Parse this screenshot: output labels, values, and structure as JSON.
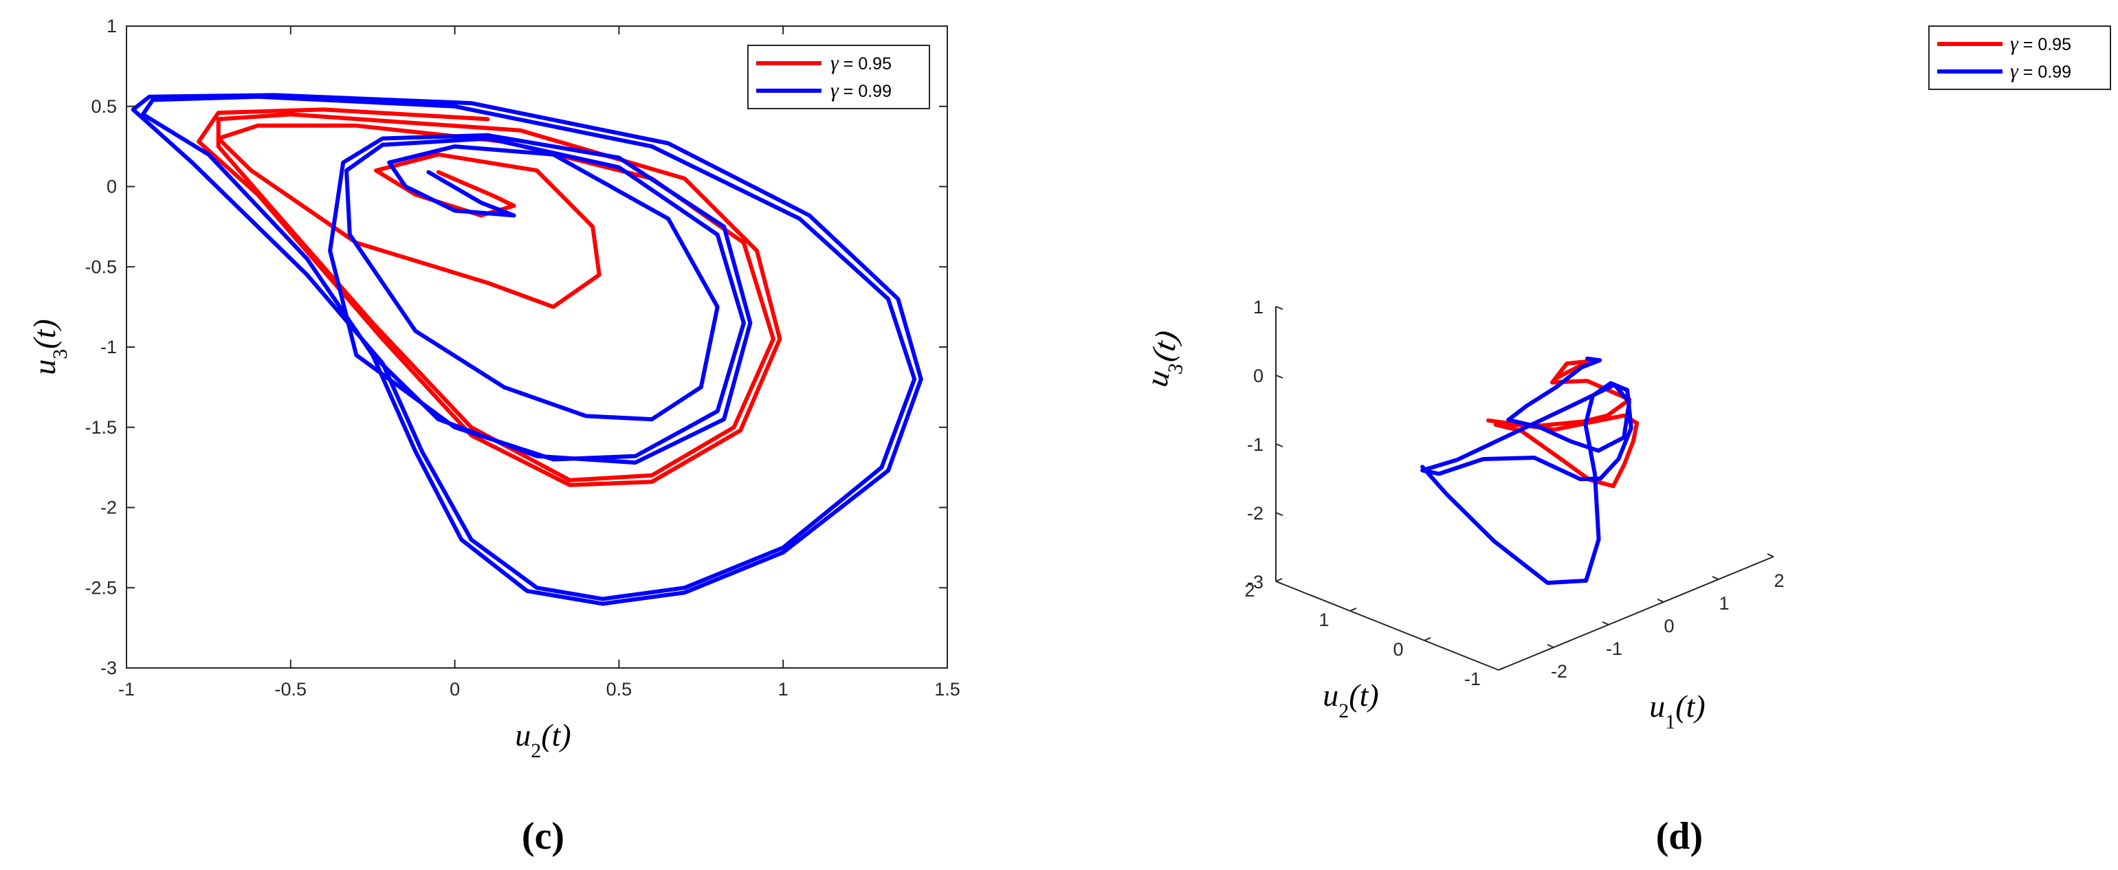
{
  "chart_data": [
    {
      "type": "line",
      "panel_label": "(c)",
      "xlabel": "u2(t)",
      "ylabel": "u3(t)",
      "xlim": [
        -1,
        1.5
      ],
      "ylim": [
        -3,
        1
      ],
      "xticks": [
        -1,
        -0.5,
        0,
        0.5,
        1,
        1.5
      ],
      "yticks": [
        -3,
        -2.5,
        -2,
        -1.5,
        -1,
        -0.5,
        0,
        0.5,
        1
      ],
      "legend_position": "top-right",
      "grid": false,
      "series": [
        {
          "name": "γ = 0.95",
          "color": "#ff0000",
          "points": [
            [
              -0.05,
              0.09
            ],
            [
              0.12,
              -0.06
            ],
            [
              0.18,
              -0.12
            ],
            [
              0.08,
              -0.18
            ],
            [
              -0.12,
              -0.05
            ],
            [
              -0.24,
              0.1
            ],
            [
              -0.05,
              0.2
            ],
            [
              0.25,
              0.1
            ],
            [
              0.42,
              -0.25
            ],
            [
              0.44,
              -0.55
            ],
            [
              0.3,
              -0.75
            ],
            [
              0.1,
              -0.6
            ],
            [
              -0.3,
              -0.35
            ],
            [
              -0.62,
              0.1
            ],
            [
              -0.72,
              0.3
            ],
            [
              -0.6,
              0.38
            ],
            [
              -0.3,
              0.38
            ],
            [
              0.15,
              0.28
            ],
            [
              0.6,
              0.05
            ],
            [
              0.88,
              -0.35
            ],
            [
              0.97,
              -0.95
            ],
            [
              0.85,
              -1.5
            ],
            [
              0.6,
              -1.8
            ],
            [
              0.35,
              -1.83
            ],
            [
              0.05,
              -1.5
            ],
            [
              -0.25,
              -0.85
            ],
            [
              -0.55,
              -0.15
            ],
            [
              -0.72,
              0.25
            ],
            [
              -0.72,
              0.42
            ],
            [
              -0.5,
              0.45
            ],
            [
              0.2,
              0.35
            ],
            [
              0.7,
              0.05
            ],
            [
              0.92,
              -0.4
            ],
            [
              0.99,
              -0.95
            ],
            [
              0.87,
              -1.52
            ],
            [
              0.6,
              -1.84
            ],
            [
              0.35,
              -1.86
            ],
            [
              0.05,
              -1.55
            ],
            [
              -0.22,
              -0.95
            ],
            [
              -0.6,
              -0.05
            ],
            [
              -0.78,
              0.28
            ],
            [
              -0.72,
              0.46
            ],
            [
              -0.4,
              0.48
            ],
            [
              0.1,
              0.42
            ]
          ]
        },
        {
          "name": "γ = 0.99",
          "color": "#0000ff",
          "points": [
            [
              -0.08,
              0.09
            ],
            [
              0.08,
              -0.1
            ],
            [
              0.18,
              -0.18
            ],
            [
              0.0,
              -0.15
            ],
            [
              -0.15,
              0.0
            ],
            [
              -0.2,
              0.15
            ],
            [
              0.0,
              0.25
            ],
            [
              0.3,
              0.2
            ],
            [
              0.65,
              -0.2
            ],
            [
              0.8,
              -0.75
            ],
            [
              0.75,
              -1.25
            ],
            [
              0.6,
              -1.45
            ],
            [
              0.4,
              -1.43
            ],
            [
              0.15,
              -1.25
            ],
            [
              -0.12,
              -0.9
            ],
            [
              -0.32,
              -0.3
            ],
            [
              -0.33,
              0.1
            ],
            [
              -0.22,
              0.26
            ],
            [
              0.1,
              0.3
            ],
            [
              0.5,
              0.12
            ],
            [
              0.8,
              -0.3
            ],
            [
              0.88,
              -0.85
            ],
            [
              0.8,
              -1.4
            ],
            [
              0.55,
              -1.68
            ],
            [
              0.3,
              -1.7
            ],
            [
              0.0,
              -1.5
            ],
            [
              -0.3,
              -1.05
            ],
            [
              -0.38,
              -0.4
            ],
            [
              -0.34,
              0.15
            ],
            [
              -0.22,
              0.3
            ],
            [
              0.1,
              0.32
            ],
            [
              0.5,
              0.18
            ],
            [
              0.82,
              -0.25
            ],
            [
              0.9,
              -0.85
            ],
            [
              0.82,
              -1.45
            ],
            [
              0.55,
              -1.72
            ],
            [
              0.25,
              -1.68
            ],
            [
              -0.05,
              -1.45
            ],
            [
              -0.25,
              -1.05
            ],
            [
              -0.45,
              -0.45
            ],
            [
              -0.75,
              0.2
            ],
            [
              -0.95,
              0.45
            ],
            [
              -0.92,
              0.54
            ],
            [
              -0.6,
              0.56
            ],
            [
              0.0,
              0.5
            ],
            [
              0.6,
              0.25
            ],
            [
              1.05,
              -0.2
            ],
            [
              1.32,
              -0.7
            ],
            [
              1.4,
              -1.2
            ],
            [
              1.3,
              -1.75
            ],
            [
              1.0,
              -2.25
            ],
            [
              0.7,
              -2.5
            ],
            [
              0.45,
              -2.57
            ],
            [
              0.25,
              -2.5
            ],
            [
              0.05,
              -2.2
            ],
            [
              -0.1,
              -1.65
            ],
            [
              -0.22,
              -1.1
            ],
            [
              -0.45,
              -0.55
            ],
            [
              -0.8,
              0.15
            ],
            [
              -0.98,
              0.48
            ],
            [
              -0.93,
              0.56
            ],
            [
              -0.55,
              0.57
            ],
            [
              0.05,
              0.52
            ],
            [
              0.65,
              0.27
            ],
            [
              1.08,
              -0.18
            ],
            [
              1.35,
              -0.7
            ],
            [
              1.42,
              -1.2
            ],
            [
              1.32,
              -1.77
            ],
            [
              1.0,
              -2.28
            ],
            [
              0.7,
              -2.53
            ],
            [
              0.45,
              -2.6
            ],
            [
              0.22,
              -2.52
            ],
            [
              0.02,
              -2.2
            ],
            [
              -0.12,
              -1.65
            ],
            [
              -0.25,
              -1.05
            ]
          ]
        }
      ]
    },
    {
      "type": "line",
      "panel_label": "(d)",
      "xlabel": "u1(t)",
      "ylabel": "u3(t)",
      "zlabel": "u2(t)",
      "xlim": [
        -3,
        2
      ],
      "ylim": [
        -1,
        2
      ],
      "zlim": [
        -3,
        1
      ],
      "xticks": [
        -2,
        -1,
        0,
        1,
        2
      ],
      "yticks": [
        -1,
        0,
        1,
        2
      ],
      "zticks": [
        -3,
        -2,
        -1,
        0,
        1
      ],
      "legend_position": "top-right",
      "grid": false,
      "series": [
        {
          "name": "γ = 0.95",
          "color": "#ff0000",
          "points": [
            [
              -1.5,
              0.25,
              -0.4
            ],
            [
              -0.5,
              0.1,
              -0.8
            ],
            [
              0.4,
              0.1,
              -0.95
            ],
            [
              0.9,
              0.2,
              -1.1
            ],
            [
              1.0,
              0.1,
              -1.2
            ],
            [
              0.8,
              0.0,
              -1.35
            ],
            [
              0.5,
              -0.1,
              -1.55
            ],
            [
              0.3,
              -0.1,
              -1.8
            ],
            [
              0.0,
              0.0,
              -1.65
            ],
            [
              -0.4,
              0.1,
              -1.25
            ],
            [
              -0.9,
              0.25,
              -0.75
            ],
            [
              -1.3,
              0.3,
              -0.55
            ],
            [
              -0.6,
              0.2,
              -0.75
            ],
            [
              0.1,
              0.15,
              -0.9
            ],
            [
              0.6,
              0.2,
              -1.0
            ],
            [
              1.0,
              0.2,
              -0.9
            ],
            [
              0.5,
              0.4,
              -0.55
            ],
            [
              0.0,
              0.5,
              -0.45
            ],
            [
              0.4,
              0.6,
              -0.35
            ],
            [
              0.8,
              0.6,
              -0.45
            ],
            [
              0.2,
              0.6,
              -0.5
            ]
          ]
        },
        {
          "name": "γ = 0.99",
          "color": "#0000ff",
          "points": [
            [
              -2.9,
              0.1,
              -0.55
            ],
            [
              -2.6,
              0.0,
              -1.0
            ],
            [
              -2.0,
              -0.2,
              -1.8
            ],
            [
              -1.3,
              -0.4,
              -2.55
            ],
            [
              -0.6,
              -0.4,
              -2.75
            ],
            [
              -0.1,
              -0.2,
              -2.4
            ],
            [
              0.1,
              0.0,
              -1.6
            ],
            [
              0.2,
              0.2,
              -1.0
            ],
            [
              0.6,
              0.4,
              -0.8
            ],
            [
              1.2,
              0.6,
              -0.9
            ],
            [
              1.5,
              0.6,
              -1.1
            ],
            [
              1.3,
              0.4,
              -1.5
            ],
            [
              0.8,
              0.2,
              -1.7
            ],
            [
              0.2,
              0.0,
              -1.7
            ],
            [
              -0.3,
              -0.1,
              -1.5
            ],
            [
              -1.0,
              0.0,
              -1.0
            ],
            [
              -1.8,
              0.1,
              -0.8
            ],
            [
              -2.6,
              0.1,
              -0.75
            ],
            [
              -2.9,
              0.1,
              -0.6
            ],
            [
              -2.2,
              0.15,
              -0.7
            ],
            [
              -1.3,
              0.25,
              -0.75
            ],
            [
              -0.4,
              0.35,
              -0.8
            ],
            [
              0.5,
              0.45,
              -0.85
            ],
            [
              1.2,
              0.55,
              -0.9
            ],
            [
              1.4,
              0.5,
              -1.2
            ],
            [
              1.1,
              0.35,
              -1.55
            ],
            [
              0.5,
              0.25,
              -1.5
            ],
            [
              0.0,
              0.25,
              -1.2
            ],
            [
              -0.5,
              0.3,
              -0.85
            ],
            [
              -1.0,
              0.35,
              -0.6
            ],
            [
              -0.6,
              0.4,
              -0.55
            ],
            [
              0.0,
              0.45,
              -0.5
            ],
            [
              0.6,
              0.55,
              -0.45
            ],
            [
              1.0,
              0.6,
              -0.5
            ],
            [
              0.8,
              0.62,
              -0.42
            ]
          ]
        }
      ]
    }
  ]
}
